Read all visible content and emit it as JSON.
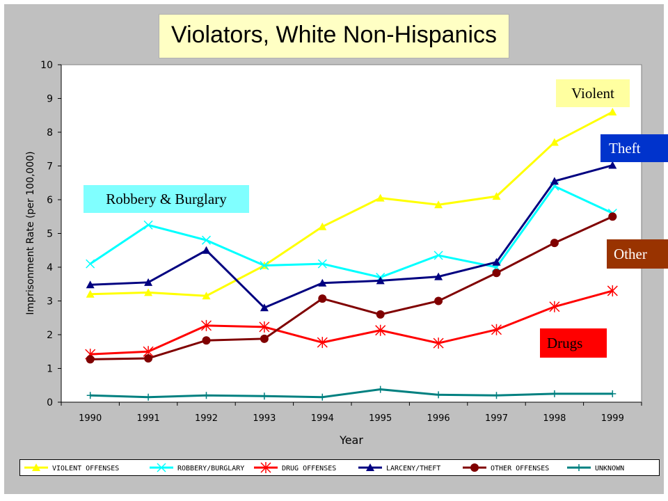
{
  "chart_data": {
    "type": "line",
    "title": "Violators, White Non-Hispanics",
    "xlabel": "Year",
    "ylabel": "Imprisonment Rate (per 100,000)",
    "ylim": [
      0,
      10
    ],
    "yticks": [
      "0",
      "1",
      "2",
      "3",
      "4",
      "5",
      "6",
      "7",
      "8",
      "9",
      "10"
    ],
    "grid": false,
    "legend_position": "bottom",
    "categories": [
      "1990",
      "1991",
      "1992",
      "1993",
      "1994",
      "1995",
      "1996",
      "1997",
      "1998",
      "1999"
    ],
    "series": [
      {
        "name": "VIOLENT OFFENSES",
        "color": "#ffff00",
        "marker": "triangle",
        "values": [
          3.2,
          3.25,
          3.15,
          4.05,
          5.2,
          6.05,
          5.85,
          6.1,
          7.7,
          8.6
        ]
      },
      {
        "name": "ROBBERY/BURGLARY",
        "color": "#00ffff",
        "marker": "x",
        "values": [
          4.1,
          5.25,
          4.8,
          4.05,
          4.1,
          3.7,
          4.35,
          4.0,
          6.4,
          5.6
        ]
      },
      {
        "name": "DRUG OFFENSES",
        "color": "#ff0000",
        "marker": "star",
        "values": [
          1.42,
          1.5,
          2.27,
          2.23,
          1.77,
          2.13,
          1.75,
          2.15,
          2.83,
          3.3
        ]
      },
      {
        "name": "LARCENY/THEFT",
        "color": "#000080",
        "marker": "triangle",
        "values": [
          3.48,
          3.55,
          4.5,
          2.8,
          3.53,
          3.6,
          3.72,
          4.15,
          6.55,
          7.02
        ]
      },
      {
        "name": "OTHER OFFENSES",
        "color": "#800000",
        "marker": "circle",
        "values": [
          1.27,
          1.3,
          1.83,
          1.88,
          3.07,
          2.6,
          3.0,
          3.83,
          4.72,
          5.5
        ]
      },
      {
        "name": "UNKNOWN",
        "color": "#008080",
        "marker": "plus",
        "values": [
          0.2,
          0.15,
          0.2,
          0.18,
          0.15,
          0.38,
          0.22,
          0.2,
          0.25,
          0.25
        ]
      }
    ]
  },
  "callouts": {
    "violent": "Violent",
    "theft": "Theft",
    "robbery": "Robbery & Burglary",
    "other": "Other",
    "drugs": "Drugs"
  }
}
